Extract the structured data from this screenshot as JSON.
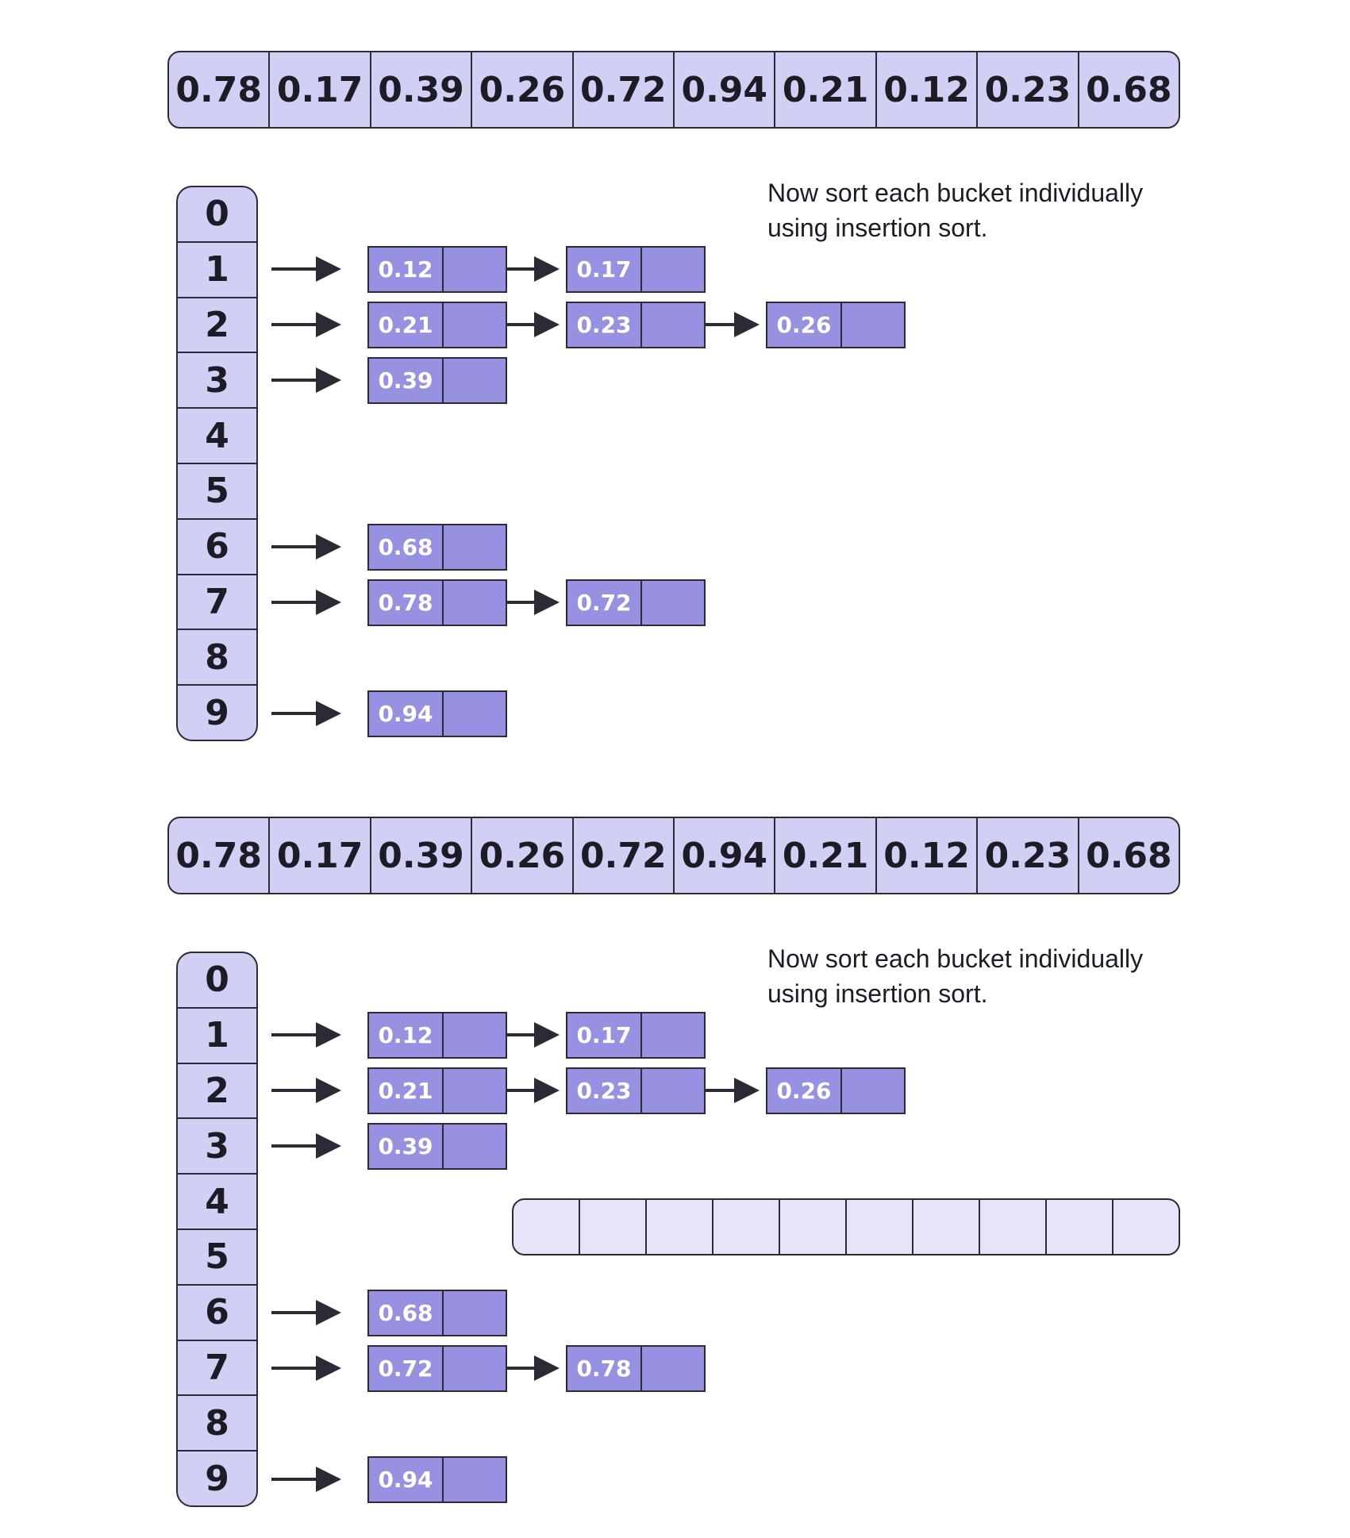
{
  "caption": {
    "line1": "Now sort each bucket individually",
    "line2": "using insertion sort."
  },
  "colors": {
    "array_fill": "#d1cff3",
    "node_fill": "#9890e0",
    "node_text": "#ffffff",
    "output_fill": "#e6e4f8",
    "stroke": "#2b2b35"
  },
  "top_array": [
    "0.78",
    "0.17",
    "0.39",
    "0.26",
    "0.72",
    "0.94",
    "0.21",
    "0.12",
    "0.23",
    "0.68"
  ],
  "bucket_indices": [
    "0",
    "1",
    "2",
    "3",
    "4",
    "5",
    "6",
    "7",
    "8",
    "9"
  ],
  "panels": [
    {
      "buckets": [
        [],
        [
          "0.12",
          "0.17"
        ],
        [
          "0.21",
          "0.23",
          "0.26"
        ],
        [
          "0.39"
        ],
        [],
        [],
        [
          "0.68"
        ],
        [
          "0.78",
          "0.72"
        ],
        [],
        [
          "0.94"
        ]
      ]
    },
    {
      "buckets": [
        [],
        [
          "0.12",
          "0.17"
        ],
        [
          "0.21",
          "0.23",
          "0.26"
        ],
        [
          "0.39"
        ],
        [],
        [],
        [
          "0.68"
        ],
        [
          "0.72",
          "0.78"
        ],
        [],
        [
          "0.94"
        ]
      ],
      "output_array": [
        "",
        "",
        "",
        "",
        "",
        "",
        "",
        "",
        "",
        ""
      ]
    }
  ]
}
